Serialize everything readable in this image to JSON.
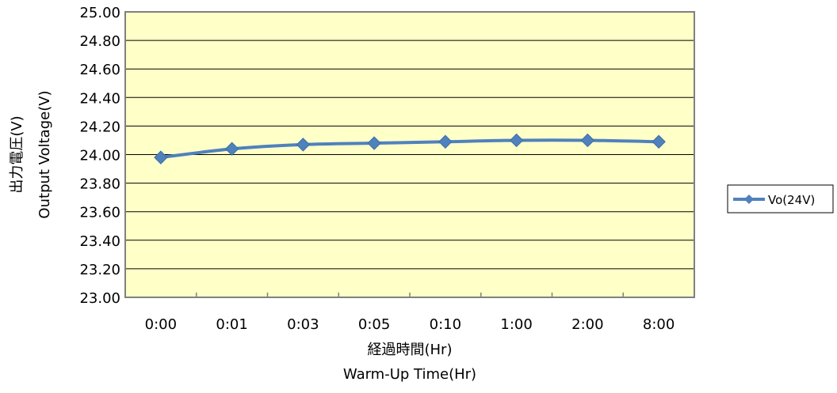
{
  "chart_data": {
    "type": "line",
    "categories": [
      "0:00",
      "0:01",
      "0:03",
      "0:05",
      "0:10",
      "1:00",
      "2:00",
      "8:00"
    ],
    "series": [
      {
        "name": "Vo(24V)",
        "values": [
          23.98,
          24.04,
          24.07,
          24.08,
          24.09,
          24.1,
          24.1,
          24.09
        ],
        "color": "#4f81bd",
        "marker": "diamond"
      }
    ],
    "ylim": [
      23.0,
      25.0
    ],
    "ytick_step": 0.2,
    "ytick_labels": [
      "23.00",
      "23.20",
      "23.40",
      "23.60",
      "23.80",
      "24.00",
      "24.20",
      "24.40",
      "24.60",
      "24.80",
      "25.00"
    ],
    "xlabel_lines": [
      "経過時間(Hr)",
      "Warm-Up Time(Hr)"
    ],
    "ylabel_lines": [
      "出力電圧(V)",
      "Output  Voltage(V)"
    ],
    "grid": true,
    "legend_position": "right",
    "plot_background": "#ffffc8"
  }
}
